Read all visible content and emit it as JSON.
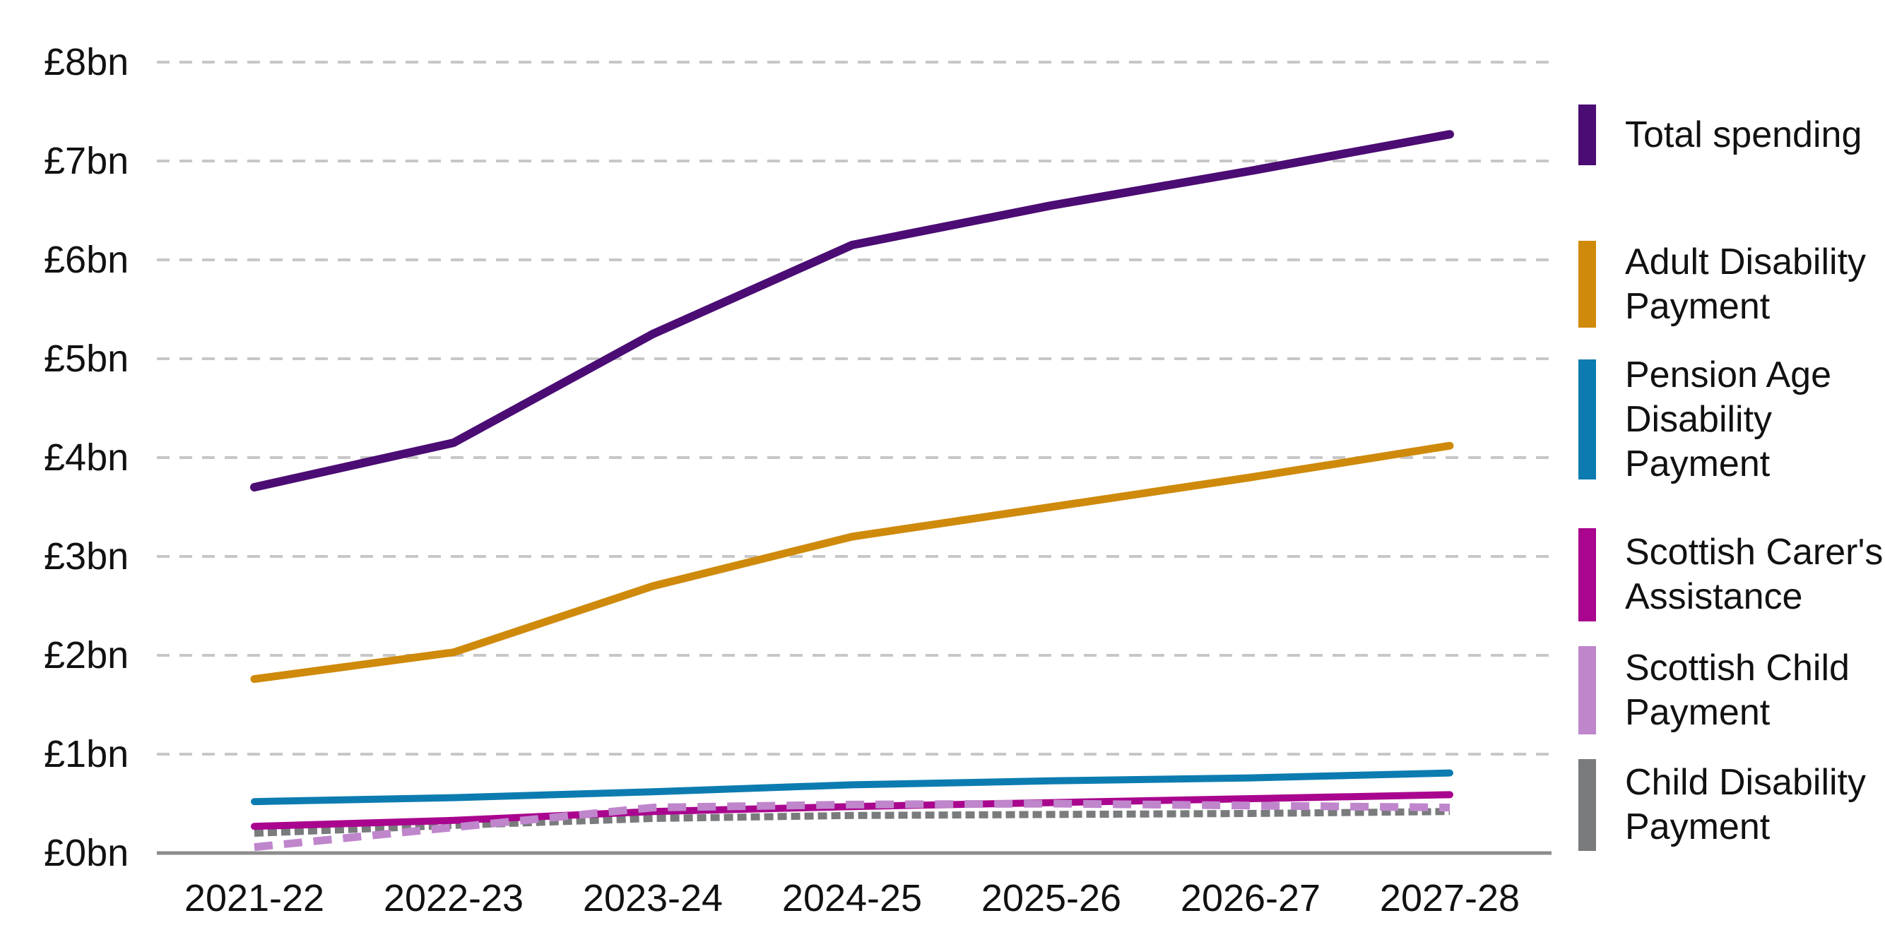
{
  "chart_data": {
    "type": "line",
    "title": "",
    "unit": "£bn",
    "grid": "dashed horizontal gridlines",
    "grid_color": "#C7C7C7",
    "axis_color": "#8C8C8C",
    "legend_position": "right",
    "categories": [
      "2021-22",
      "2022-23",
      "2023-24",
      "2024-25",
      "2025-26",
      "2026-27",
      "2027-28"
    ],
    "y_axis": {
      "min": 0,
      "max": 8,
      "step": 1,
      "tick_labels": [
        "£0bn",
        "£1bn",
        "£2bn",
        "£3bn",
        "£4bn",
        "£5bn",
        "£6bn",
        "£7bn",
        "£8bn"
      ]
    },
    "series": [
      {
        "name": "Total spending",
        "legend_lines": [
          "Total spending"
        ],
        "color": "#4B0C74",
        "style": "solid",
        "values": [
          3.7,
          4.15,
          5.25,
          6.15,
          6.55,
          6.9,
          7.27
        ]
      },
      {
        "name": "Adult Disability Payment",
        "legend_lines": [
          "Adult Disability",
          "Payment"
        ],
        "color": "#CF8A0B",
        "style": "solid",
        "values": [
          1.76,
          2.03,
          2.7,
          3.2,
          3.5,
          3.8,
          4.12
        ]
      },
      {
        "name": "Pension Age Disability Payment",
        "legend_lines": [
          "Pension Age",
          "Disability",
          "Payment"
        ],
        "color": "#0C7CB0",
        "style": "solid",
        "values": [
          0.52,
          0.56,
          0.62,
          0.69,
          0.73,
          0.76,
          0.81
        ]
      },
      {
        "name": "Scottish Carer's Assistance",
        "legend_lines": [
          "Scottish Carer's",
          "Assistance"
        ],
        "color": "#A9058E",
        "style": "solid",
        "values": [
          0.27,
          0.33,
          0.42,
          0.47,
          0.51,
          0.55,
          0.59
        ]
      },
      {
        "name": "Scottish Child Payment",
        "legend_lines": [
          "Scottish Child",
          "Payment"
        ],
        "color": "#BF86CC",
        "style": "dashed",
        "values": [
          0.06,
          0.26,
          0.46,
          0.49,
          0.5,
          0.48,
          0.46
        ]
      },
      {
        "name": "Child Disability Payment",
        "legend_lines": [
          "Child Disability",
          "Payment"
        ],
        "color": "#797B7D",
        "style": "dashed-short",
        "values": [
          0.2,
          0.28,
          0.35,
          0.38,
          0.39,
          0.4,
          0.42
        ]
      }
    ]
  }
}
